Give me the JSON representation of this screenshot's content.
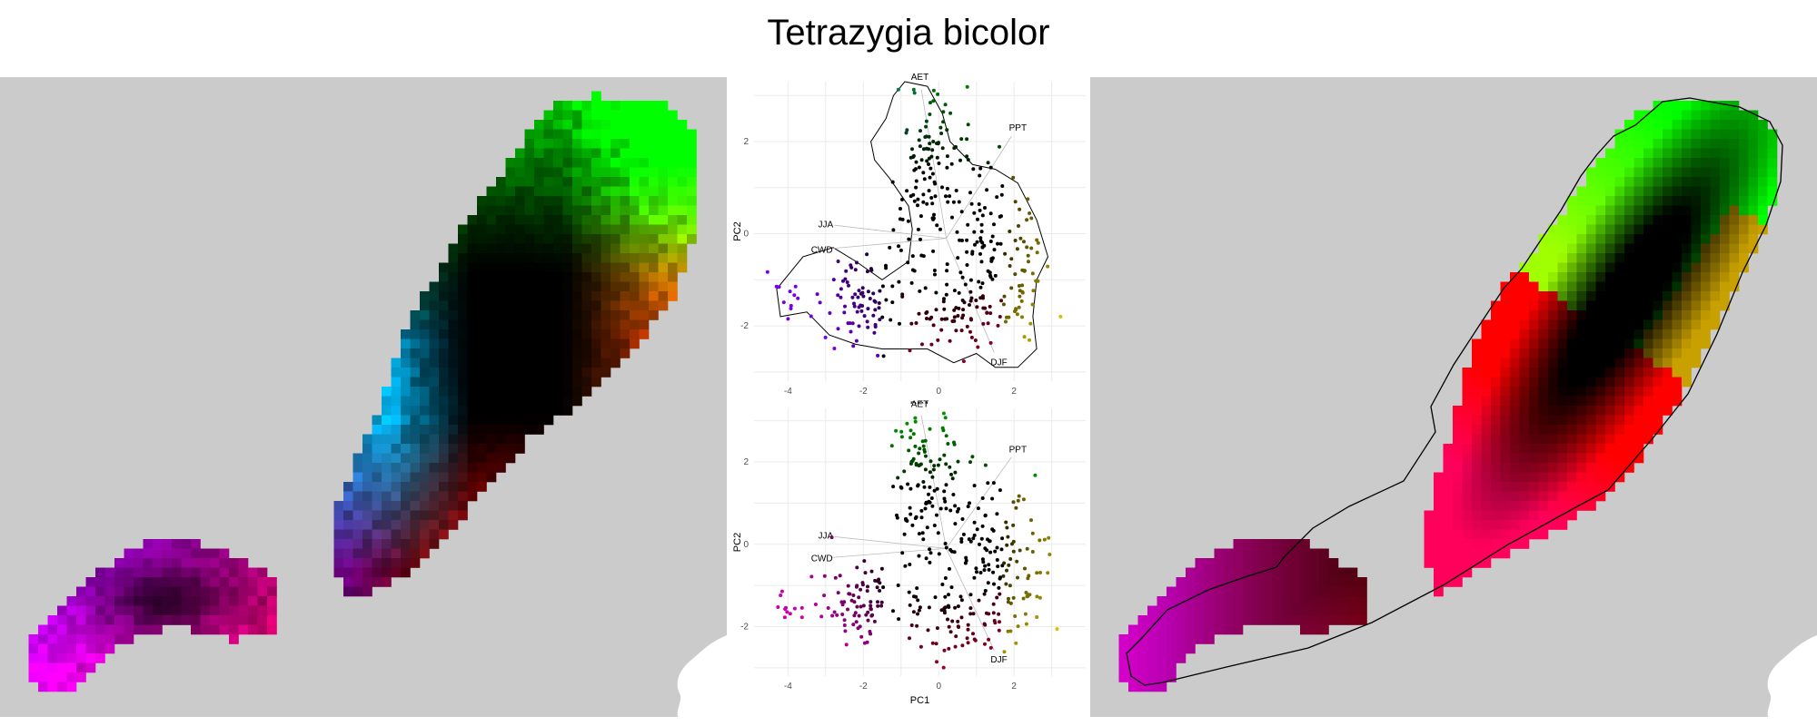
{
  "title": "Tetrazygia bicolor",
  "colors": {
    "panel_bg": "#cbcbcb",
    "hull": "#000000"
  },
  "chart_data": [
    {
      "type": "heatmap",
      "panel": "left-map",
      "description_note": "",
      "color_scale": "rgb from PC scores"
    },
    {
      "type": "scatter",
      "panel": "pca-top",
      "xlabel": "PC1",
      "ylabel": "PC2",
      "xlim": [
        -4.9,
        3.9
      ],
      "ylim": [
        -3.2,
        3.3
      ],
      "xticks": [
        -4,
        -2,
        0,
        2
      ],
      "yticks": [
        -2,
        0,
        2
      ],
      "grid": true,
      "vectors": [
        {
          "label": "AET",
          "x": -0.5,
          "y": 3.4
        },
        {
          "label": "PPT",
          "x": 2.1,
          "y": 2.3
        },
        {
          "label": "JJA",
          "x": -3.0,
          "y": 0.2
        },
        {
          "label": "CWD",
          "x": -3.1,
          "y": -0.35
        },
        {
          "label": "DJF",
          "x": 1.6,
          "y": -2.8
        }
      ],
      "hull": true
    },
    {
      "type": "scatter",
      "panel": "pca-bottom",
      "xlabel": "PC1",
      "ylabel": "PC2",
      "xlim": [
        -4.9,
        3.9
      ],
      "ylim": [
        -3.2,
        3.3
      ],
      "xticks": [
        -4,
        -2,
        0,
        2
      ],
      "yticks": [
        -2,
        0,
        2
      ],
      "grid": true,
      "vectors": [
        {
          "label": "AET",
          "x": -0.5,
          "y": 3.4
        },
        {
          "label": "PPT",
          "x": 2.1,
          "y": 2.3
        },
        {
          "label": "JJA",
          "x": -3.0,
          "y": 0.2
        },
        {
          "label": "CWD",
          "x": -3.1,
          "y": -0.35
        },
        {
          "label": "DJF",
          "x": 1.6,
          "y": -2.8
        }
      ],
      "hull": false
    },
    {
      "type": "heatmap",
      "panel": "right-map",
      "color_scale": "rgb from PC distance",
      "hull": true
    }
  ]
}
